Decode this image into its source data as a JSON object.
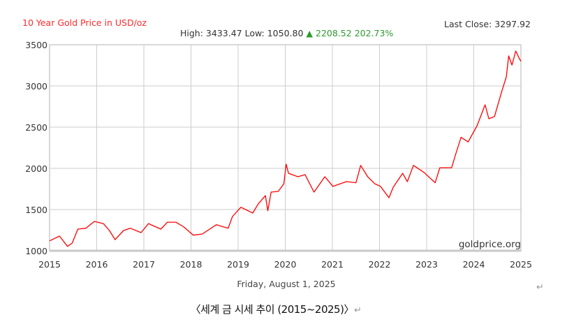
{
  "header": {
    "title": "10 Year Gold Price in USD/oz",
    "last_close": "Last Close: 3297.92",
    "high": "High: 3433.47",
    "low": "Low: 1050.80",
    "change_icon": "triangle-up-icon",
    "change": "2208.52",
    "change_pct": "202.73%"
  },
  "watermark": "goldprice.org",
  "date_label": "Friday, August 1, 2025",
  "caption": "〈세계 금 시세 추이 (2015~2025)〉",
  "paragraph_mark": "↵",
  "colors": {
    "line": "#ff0000",
    "title": "#ff2a2a",
    "up": "#2e9a2e",
    "grid": "#cccccc"
  },
  "chart_data": {
    "type": "line",
    "title": "10 Year Gold Price in USD/oz",
    "xlabel": "",
    "ylabel": "",
    "xlim": [
      2015,
      2025
    ],
    "ylim": [
      1000,
      3500
    ],
    "x_ticks": [
      "2015",
      "2016",
      "2017",
      "2018",
      "2019",
      "2020",
      "2021",
      "2022",
      "2023",
      "2024",
      "2025"
    ],
    "y_ticks": [
      "1000",
      "1500",
      "2000",
      "2500",
      "3000",
      "3500"
    ],
    "grid": true,
    "series": [
      {
        "x": [
          2015.0,
          2015.21,
          2015.38,
          2015.48,
          2015.6,
          2015.77,
          2015.95,
          2016.14,
          2016.27,
          2016.39,
          2016.57,
          2016.71,
          2016.94,
          2017.1,
          2017.36,
          2017.5,
          2017.68,
          2017.85,
          2018.05,
          2018.24,
          2018.54,
          2018.79,
          2018.88,
          2019.06,
          2019.31,
          2019.43,
          2019.58,
          2019.63,
          2019.7,
          2019.85,
          2019.97,
          2020.02,
          2020.07,
          2020.27,
          2020.42,
          2020.61,
          2020.84,
          2021.01,
          2021.3,
          2021.5,
          2021.6,
          2021.75,
          2021.9,
          2022.02,
          2022.2,
          2022.29,
          2022.49,
          2022.59,
          2022.72,
          2022.94,
          2023.18,
          2023.28,
          2023.53,
          2023.62,
          2023.73,
          2023.88,
          2024.07,
          2024.24,
          2024.32,
          2024.44,
          2024.59,
          2024.69,
          2024.74,
          2024.81,
          2024.89,
          2024.96,
          2025.0
        ],
        "y": [
          1120,
          1178,
          1053,
          1093,
          1263,
          1274,
          1356,
          1330,
          1246,
          1135,
          1246,
          1274,
          1220,
          1330,
          1263,
          1347,
          1347,
          1288,
          1189,
          1203,
          1316,
          1274,
          1415,
          1528,
          1458,
          1570,
          1669,
          1486,
          1712,
          1720,
          1813,
          2050,
          1940,
          1898,
          1924,
          1712,
          1898,
          1782,
          1839,
          1825,
          2036,
          1898,
          1813,
          1782,
          1643,
          1770,
          1940,
          1839,
          2036,
          1952,
          1825,
          2008,
          2008,
          2178,
          2376,
          2320,
          2517,
          2771,
          2602,
          2630,
          2926,
          3110,
          3364,
          3253,
          3424,
          3339,
          3298
        ]
      }
    ]
  }
}
